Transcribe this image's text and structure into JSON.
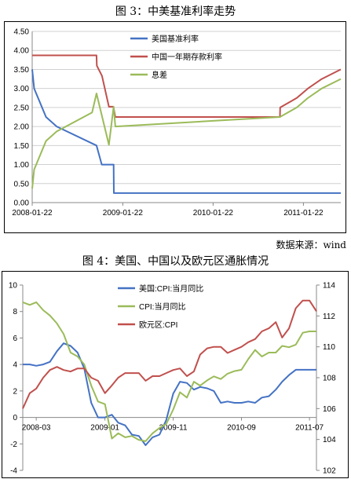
{
  "figure1": {
    "title": "图 3：中美基准利率走势",
    "source_note": "数据来源：wind",
    "chart_data": {
      "type": "line",
      "title": "",
      "xlabel": "",
      "ylabel": "",
      "x_ticks": [
        "2008-01-22",
        "2009-01-22",
        "2010-01-22",
        "2011-01-22"
      ],
      "y_ticks": [
        "0.00",
        "0.50",
        "1.00",
        "1.50",
        "2.00",
        "2.50",
        "3.00",
        "3.50",
        "4.00",
        "4.50"
      ],
      "ylim": [
        0,
        4.5
      ],
      "xlim": [
        "2008-01-22",
        "2011-06-22"
      ],
      "grid": "horizontal",
      "legend_position": "top-center",
      "series": [
        {
          "name": "美国基准利率",
          "color": "#4472C4",
          "points": [
            [
              "2008-01-22",
              3.5
            ],
            [
              "2008-01-30",
              3.0
            ],
            [
              "2008-03-18",
              2.25
            ],
            [
              "2008-04-30",
              2.0
            ],
            [
              "2008-10-08",
              1.5
            ],
            [
              "2008-10-29",
              1.0
            ],
            [
              "2008-12-16",
              1.0
            ],
            [
              "2008-12-17",
              0.25
            ],
            [
              "2011-06-22",
              0.25
            ]
          ]
        },
        {
          "name": "中国一年期存款利率",
          "color": "#C0504D",
          "points": [
            [
              "2008-01-22",
              3.87
            ],
            [
              "2008-10-08",
              3.87
            ],
            [
              "2008-10-09",
              3.6
            ],
            [
              "2008-10-30",
              3.33
            ],
            [
              "2008-11-27",
              2.52
            ],
            [
              "2008-12-15",
              2.52
            ],
            [
              "2008-12-23",
              2.25
            ],
            [
              "2010-10-19",
              2.25
            ],
            [
              "2010-10-20",
              2.5
            ],
            [
              "2010-12-26",
              2.75
            ],
            [
              "2011-02-09",
              3.0
            ],
            [
              "2011-04-06",
              3.25
            ],
            [
              "2011-06-22",
              3.5
            ]
          ]
        },
        {
          "name": "息差",
          "color": "#9BBB59",
          "points": [
            [
              "2008-01-22",
              0.37
            ],
            [
              "2008-01-30",
              0.87
            ],
            [
              "2008-03-18",
              1.62
            ],
            [
              "2008-04-30",
              1.87
            ],
            [
              "2008-09-20",
              2.37
            ],
            [
              "2008-10-08",
              2.87
            ],
            [
              "2008-11-27",
              1.52
            ],
            [
              "2008-12-16",
              2.52
            ],
            [
              "2008-12-23",
              2.0
            ],
            [
              "2010-10-19",
              2.25
            ],
            [
              "2010-12-26",
              2.5
            ],
            [
              "2011-02-09",
              2.75
            ],
            [
              "2011-04-06",
              3.0
            ],
            [
              "2011-06-22",
              3.25
            ]
          ]
        }
      ]
    }
  },
  "figure2": {
    "title": "图 4：美国、中国以及欧元区通胀情况",
    "chart_data": {
      "type": "line",
      "title": "",
      "xlabel": "",
      "ylabel": "",
      "x_ticks": [
        "2008-03",
        "2009-01",
        "2009-11",
        "2010-09",
        "2011-07"
      ],
      "left_y_ticks": [
        "-4",
        "-2",
        "0",
        "2",
        "4",
        "6",
        "8",
        "10"
      ],
      "right_y_ticks": [
        "102",
        "104",
        "106",
        "108",
        "110",
        "112",
        "114"
      ],
      "ylim_left": [
        -4,
        10
      ],
      "ylim_right": [
        102,
        114
      ],
      "xlim": [
        "2008-01",
        "2011-08"
      ],
      "grid": "none",
      "legend_position": "top-center",
      "series": [
        {
          "name": "美国:CPI:当月同比",
          "color": "#4472C4",
          "axis": "left",
          "x": [
            "2008-01",
            "2008-02",
            "2008-03",
            "2008-04",
            "2008-05",
            "2008-06",
            "2008-07",
            "2008-08",
            "2008-09",
            "2008-10",
            "2008-11",
            "2008-12",
            "2009-01",
            "2009-02",
            "2009-03",
            "2009-04",
            "2009-05",
            "2009-06",
            "2009-07",
            "2009-08",
            "2009-09",
            "2009-10",
            "2009-11",
            "2009-12",
            "2010-01",
            "2010-02",
            "2010-03",
            "2010-04",
            "2010-05",
            "2010-06",
            "2010-07",
            "2010-08",
            "2010-09",
            "2010-10",
            "2010-11",
            "2010-12",
            "2011-01",
            "2011-02",
            "2011-03",
            "2011-04",
            "2011-05",
            "2011-06",
            "2011-07",
            "2011-08"
          ],
          "values": [
            4.0,
            4.0,
            3.9,
            4.0,
            4.2,
            5.0,
            5.6,
            5.4,
            4.9,
            3.7,
            1.1,
            0.0,
            0.0,
            0.2,
            -0.4,
            -0.6,
            -1.3,
            -1.4,
            -2.1,
            -1.5,
            -1.3,
            -0.2,
            1.8,
            2.7,
            2.6,
            2.1,
            2.3,
            2.2,
            2.0,
            1.1,
            1.2,
            1.1,
            1.1,
            1.2,
            1.1,
            1.5,
            1.6,
            2.1,
            2.7,
            3.2,
            3.6,
            3.6,
            3.6,
            3.6
          ]
        },
        {
          "name": "CPI:当月同比",
          "color": "#9BBB59",
          "axis": "left",
          "x": [
            "2008-01",
            "2008-02",
            "2008-03",
            "2008-04",
            "2008-05",
            "2008-06",
            "2008-07",
            "2008-08",
            "2008-09",
            "2008-10",
            "2008-11",
            "2008-12",
            "2009-01",
            "2009-02",
            "2009-03",
            "2009-04",
            "2009-05",
            "2009-06",
            "2009-07",
            "2009-08",
            "2009-09",
            "2009-10",
            "2009-11",
            "2009-12",
            "2010-01",
            "2010-02",
            "2010-03",
            "2010-04",
            "2010-05",
            "2010-06",
            "2010-07",
            "2010-08",
            "2010-09",
            "2010-10",
            "2010-11",
            "2010-12",
            "2011-01",
            "2011-02",
            "2011-03",
            "2011-04",
            "2011-05",
            "2011-06",
            "2011-07",
            "2011-08"
          ],
          "values": [
            8.7,
            8.5,
            8.7,
            8.1,
            7.7,
            7.1,
            6.3,
            4.9,
            4.6,
            4.0,
            2.4,
            1.2,
            1.0,
            -1.6,
            -1.2,
            -1.5,
            -1.4,
            -1.7,
            -1.8,
            -1.2,
            -0.8,
            -0.5,
            0.6,
            1.9,
            1.5,
            2.7,
            2.4,
            2.8,
            3.1,
            2.9,
            3.3,
            3.5,
            3.6,
            4.4,
            5.1,
            4.6,
            4.9,
            4.9,
            5.4,
            5.3,
            5.5,
            6.4,
            6.5,
            6.5
          ]
        },
        {
          "name": "欧元区:CPI",
          "color": "#C0504D",
          "axis": "right",
          "x": [
            "2008-01",
            "2008-02",
            "2008-03",
            "2008-04",
            "2008-05",
            "2008-06",
            "2008-07",
            "2008-08",
            "2008-09",
            "2008-10",
            "2008-11",
            "2008-12",
            "2009-01",
            "2009-02",
            "2009-03",
            "2009-04",
            "2009-05",
            "2009-06",
            "2009-07",
            "2009-08",
            "2009-09",
            "2009-10",
            "2009-11",
            "2009-12",
            "2010-01",
            "2010-02",
            "2010-03",
            "2010-04",
            "2010-05",
            "2010-06",
            "2010-07",
            "2010-08",
            "2010-09",
            "2010-10",
            "2010-11",
            "2010-12",
            "2011-01",
            "2011-02",
            "2011-03",
            "2011-04",
            "2011-05",
            "2011-06",
            "2011-07",
            "2011-08"
          ],
          "values": [
            106.0,
            107.0,
            107.3,
            108.0,
            108.5,
            108.7,
            108.5,
            108.4,
            108.6,
            108.6,
            108.0,
            107.8,
            107.0,
            107.5,
            108.0,
            108.3,
            108.3,
            108.3,
            107.8,
            108.1,
            108.1,
            108.3,
            108.5,
            108.6,
            108.1,
            108.4,
            109.5,
            109.9,
            110.0,
            110.0,
            109.6,
            109.8,
            110.0,
            110.3,
            110.5,
            111.0,
            111.2,
            111.6,
            110.6,
            111.2,
            112.5,
            113.0,
            113.0,
            112.3
          ]
        }
      ]
    }
  }
}
